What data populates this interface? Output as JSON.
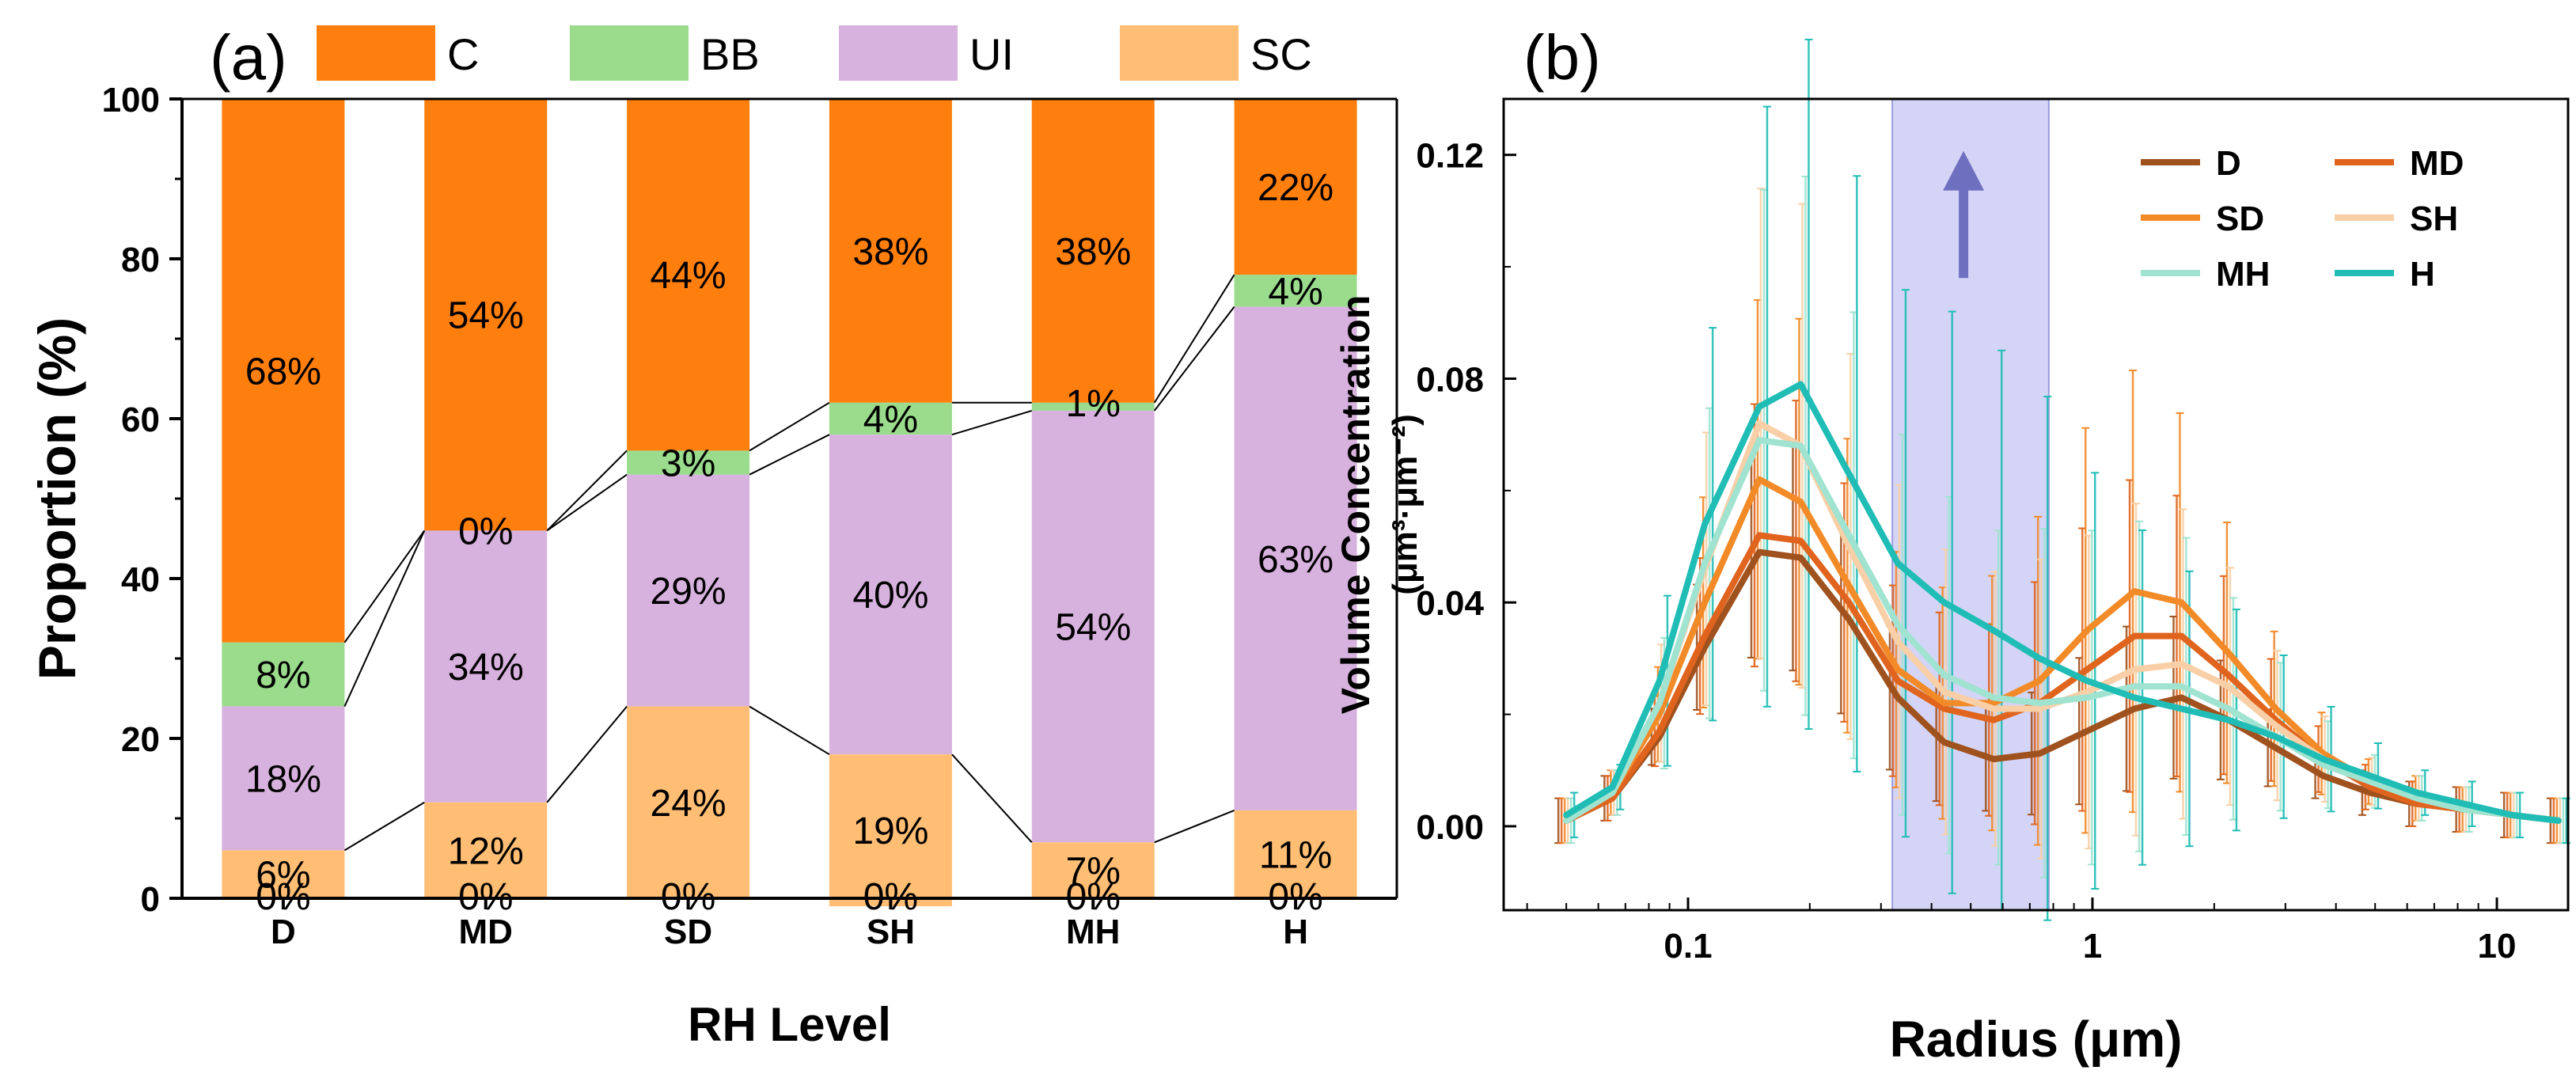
{
  "chart_data": [
    {
      "id": "a",
      "type": "bar",
      "stacked": true,
      "panel_label": "(a)",
      "title": "",
      "xlabel": "RH Level",
      "ylabel": "Proportion (%)",
      "ylim": [
        0,
        100
      ],
      "yticks": [
        "0",
        "20",
        "40",
        "60",
        "80",
        "100"
      ],
      "categories": [
        "D",
        "MD",
        "SD",
        "SH",
        "MH",
        "H"
      ],
      "legend_position": "top",
      "series": [
        {
          "name": "C",
          "color": "#FF7F0E",
          "values": [
            68,
            54,
            44,
            38,
            38,
            22
          ],
          "labels": [
            "68%",
            "54%",
            "44%",
            "38%",
            "38%",
            "22%"
          ]
        },
        {
          "name": "BB",
          "color": "#9ADB8C",
          "values": [
            8,
            0,
            3,
            4,
            1,
            4
          ],
          "labels": [
            "8%",
            "0%",
            "3%",
            "4%",
            "1%",
            "4%"
          ]
        },
        {
          "name": "UI",
          "color": "#D8B2DE",
          "values": [
            18,
            34,
            29,
            40,
            54,
            63
          ],
          "labels": [
            "18%",
            "34%",
            "29%",
            "40%",
            "54%",
            "63%"
          ]
        },
        {
          "name": "SC",
          "color": "#FFBE74",
          "values": [
            6,
            12,
            24,
            19,
            7,
            11
          ],
          "labels": [
            "6%",
            "12%",
            "24%",
            "19%",
            "7%",
            "11%"
          ]
        },
        {
          "name": "",
          "color": "#000000",
          "values": [
            0,
            0,
            0,
            0,
            0,
            0
          ],
          "labels": [
            "0%",
            "0%",
            "0%",
            "0%",
            "0%",
            "0%"
          ]
        }
      ]
    },
    {
      "id": "b",
      "type": "line",
      "panel_label": "(b)",
      "title": "",
      "xlabel": "Radius (μm)",
      "ylabel": "Volume Concentration",
      "ylabel_units": "(μm³·μm⁻²)",
      "xscale": "log",
      "xlim": [
        0.035,
        15
      ],
      "ylim": [
        -0.015,
        0.13
      ],
      "xticks": [
        {
          "v": 0.1,
          "label": "0.1"
        },
        {
          "v": 1,
          "label": "1"
        },
        {
          "v": 10,
          "label": "10"
        }
      ],
      "yticks": [
        {
          "v": 0.0,
          "label": "0.00"
        },
        {
          "v": 0.04,
          "label": "0.04"
        },
        {
          "v": 0.08,
          "label": "0.08"
        },
        {
          "v": 0.12,
          "label": "0.12"
        }
      ],
      "highlight_band": {
        "x0": 0.32,
        "x1": 0.78,
        "color": "#B8B8F0"
      },
      "arrow": {
        "x": 0.48,
        "y_from": 0.098,
        "y_to": 0.12,
        "color": "#6F6FC0"
      },
      "legend_position": "top-right",
      "x": [
        0.05,
        0.065,
        0.085,
        0.11,
        0.15,
        0.19,
        0.25,
        0.33,
        0.43,
        0.57,
        0.74,
        0.97,
        1.27,
        1.66,
        2.17,
        2.84,
        3.72,
        4.86,
        6.35,
        8.3,
        10.9,
        14.2
      ],
      "series": [
        {
          "name": "D",
          "color": "#A0521E",
          "values": [
            0.001,
            0.005,
            0.016,
            0.032,
            0.049,
            0.048,
            0.037,
            0.023,
            0.015,
            0.012,
            0.013,
            0.017,
            0.021,
            0.023,
            0.019,
            0.014,
            0.009,
            0.006,
            0.004,
            0.003,
            0.002,
            0.001
          ]
        },
        {
          "name": "MD",
          "color": "#E0641E",
          "values": [
            0.001,
            0.005,
            0.017,
            0.034,
            0.052,
            0.051,
            0.04,
            0.026,
            0.021,
            0.019,
            0.022,
            0.028,
            0.034,
            0.034,
            0.027,
            0.019,
            0.012,
            0.007,
            0.004,
            0.003,
            0.002,
            0.001
          ]
        },
        {
          "name": "SD",
          "color": "#F28A28",
          "values": [
            0.001,
            0.006,
            0.02,
            0.04,
            0.062,
            0.058,
            0.043,
            0.028,
            0.022,
            0.022,
            0.026,
            0.035,
            0.042,
            0.04,
            0.031,
            0.021,
            0.013,
            0.008,
            0.005,
            0.003,
            0.002,
            0.001
          ]
        },
        {
          "name": "SH",
          "color": "#F8CFA6",
          "values": [
            0.001,
            0.006,
            0.022,
            0.046,
            0.072,
            0.068,
            0.05,
            0.033,
            0.024,
            0.021,
            0.021,
            0.024,
            0.028,
            0.029,
            0.025,
            0.018,
            0.012,
            0.008,
            0.005,
            0.003,
            0.002,
            0.001
          ]
        },
        {
          "name": "MH",
          "color": "#9FE3D0",
          "values": [
            0.001,
            0.006,
            0.022,
            0.047,
            0.069,
            0.068,
            0.052,
            0.036,
            0.027,
            0.023,
            0.022,
            0.023,
            0.025,
            0.025,
            0.021,
            0.016,
            0.011,
            0.008,
            0.005,
            0.003,
            0.002,
            0.001
          ]
        },
        {
          "name": "H",
          "color": "#1FBDB5",
          "values": [
            0.002,
            0.007,
            0.026,
            0.054,
            0.075,
            0.079,
            0.063,
            0.047,
            0.04,
            0.035,
            0.03,
            0.026,
            0.023,
            0.021,
            0.019,
            0.016,
            0.012,
            0.009,
            0.006,
            0.004,
            0.002,
            0.001
          ]
        }
      ]
    }
  ]
}
